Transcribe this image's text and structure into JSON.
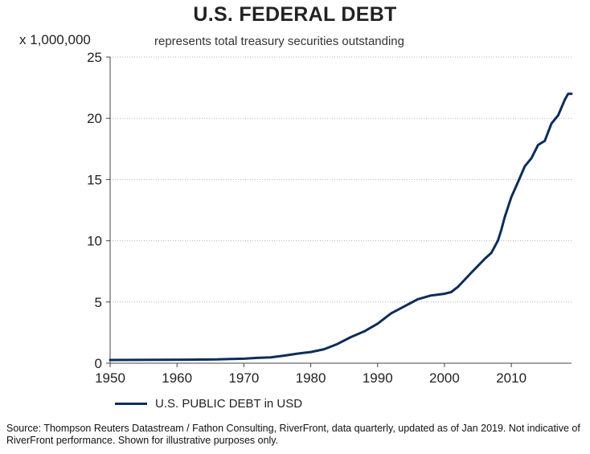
{
  "chart_data": {
    "type": "line",
    "title": "U.S. FEDERAL DEBT",
    "subtitle": "represents total treasury securities outstanding",
    "y_units": "x 1,000,000",
    "xlim": [
      1950,
      2019
    ],
    "ylim": [
      0,
      25
    ],
    "x_ticks": [
      1950,
      1960,
      1970,
      1980,
      1990,
      2000,
      2010
    ],
    "y_ticks": [
      0,
      5,
      10,
      15,
      20,
      25
    ],
    "grid": "horizontal dotted",
    "legend": "bottom-left",
    "series": [
      {
        "name": "U.S. PUBLIC DEBT in USD",
        "color": "#0d2d5a",
        "x": [
          1950,
          1954,
          1958,
          1962,
          1966,
          1968,
          1970,
          1972,
          1974,
          1976,
          1978,
          1980,
          1982,
          1984,
          1986,
          1988,
          1990,
          1992,
          1994,
          1996,
          1998,
          2000,
          2001,
          2002,
          2004,
          2006,
          2007,
          2008,
          2008.5,
          2009,
          2010,
          2011,
          2012,
          2013,
          2014,
          2015,
          2016,
          2017,
          2018,
          2018.5,
          2019
        ],
        "y": [
          0.26,
          0.27,
          0.28,
          0.29,
          0.31,
          0.35,
          0.37,
          0.43,
          0.48,
          0.62,
          0.78,
          0.91,
          1.14,
          1.57,
          2.13,
          2.6,
          3.23,
          4.06,
          4.64,
          5.22,
          5.53,
          5.67,
          5.81,
          6.23,
          7.38,
          8.51,
          9.0,
          10.02,
          10.9,
          11.9,
          13.56,
          14.79,
          16.07,
          16.74,
          17.82,
          18.15,
          19.57,
          20.24,
          21.52,
          22.0,
          22.0
        ]
      }
    ]
  },
  "footer": {
    "source": "Source: Thompson Reuters Datastream / Fathon Consulting, RiverFront, data quarterly, updated as of Jan 2019. Not indicative of RiverFront performance. Shown for illustrative purposes only."
  }
}
